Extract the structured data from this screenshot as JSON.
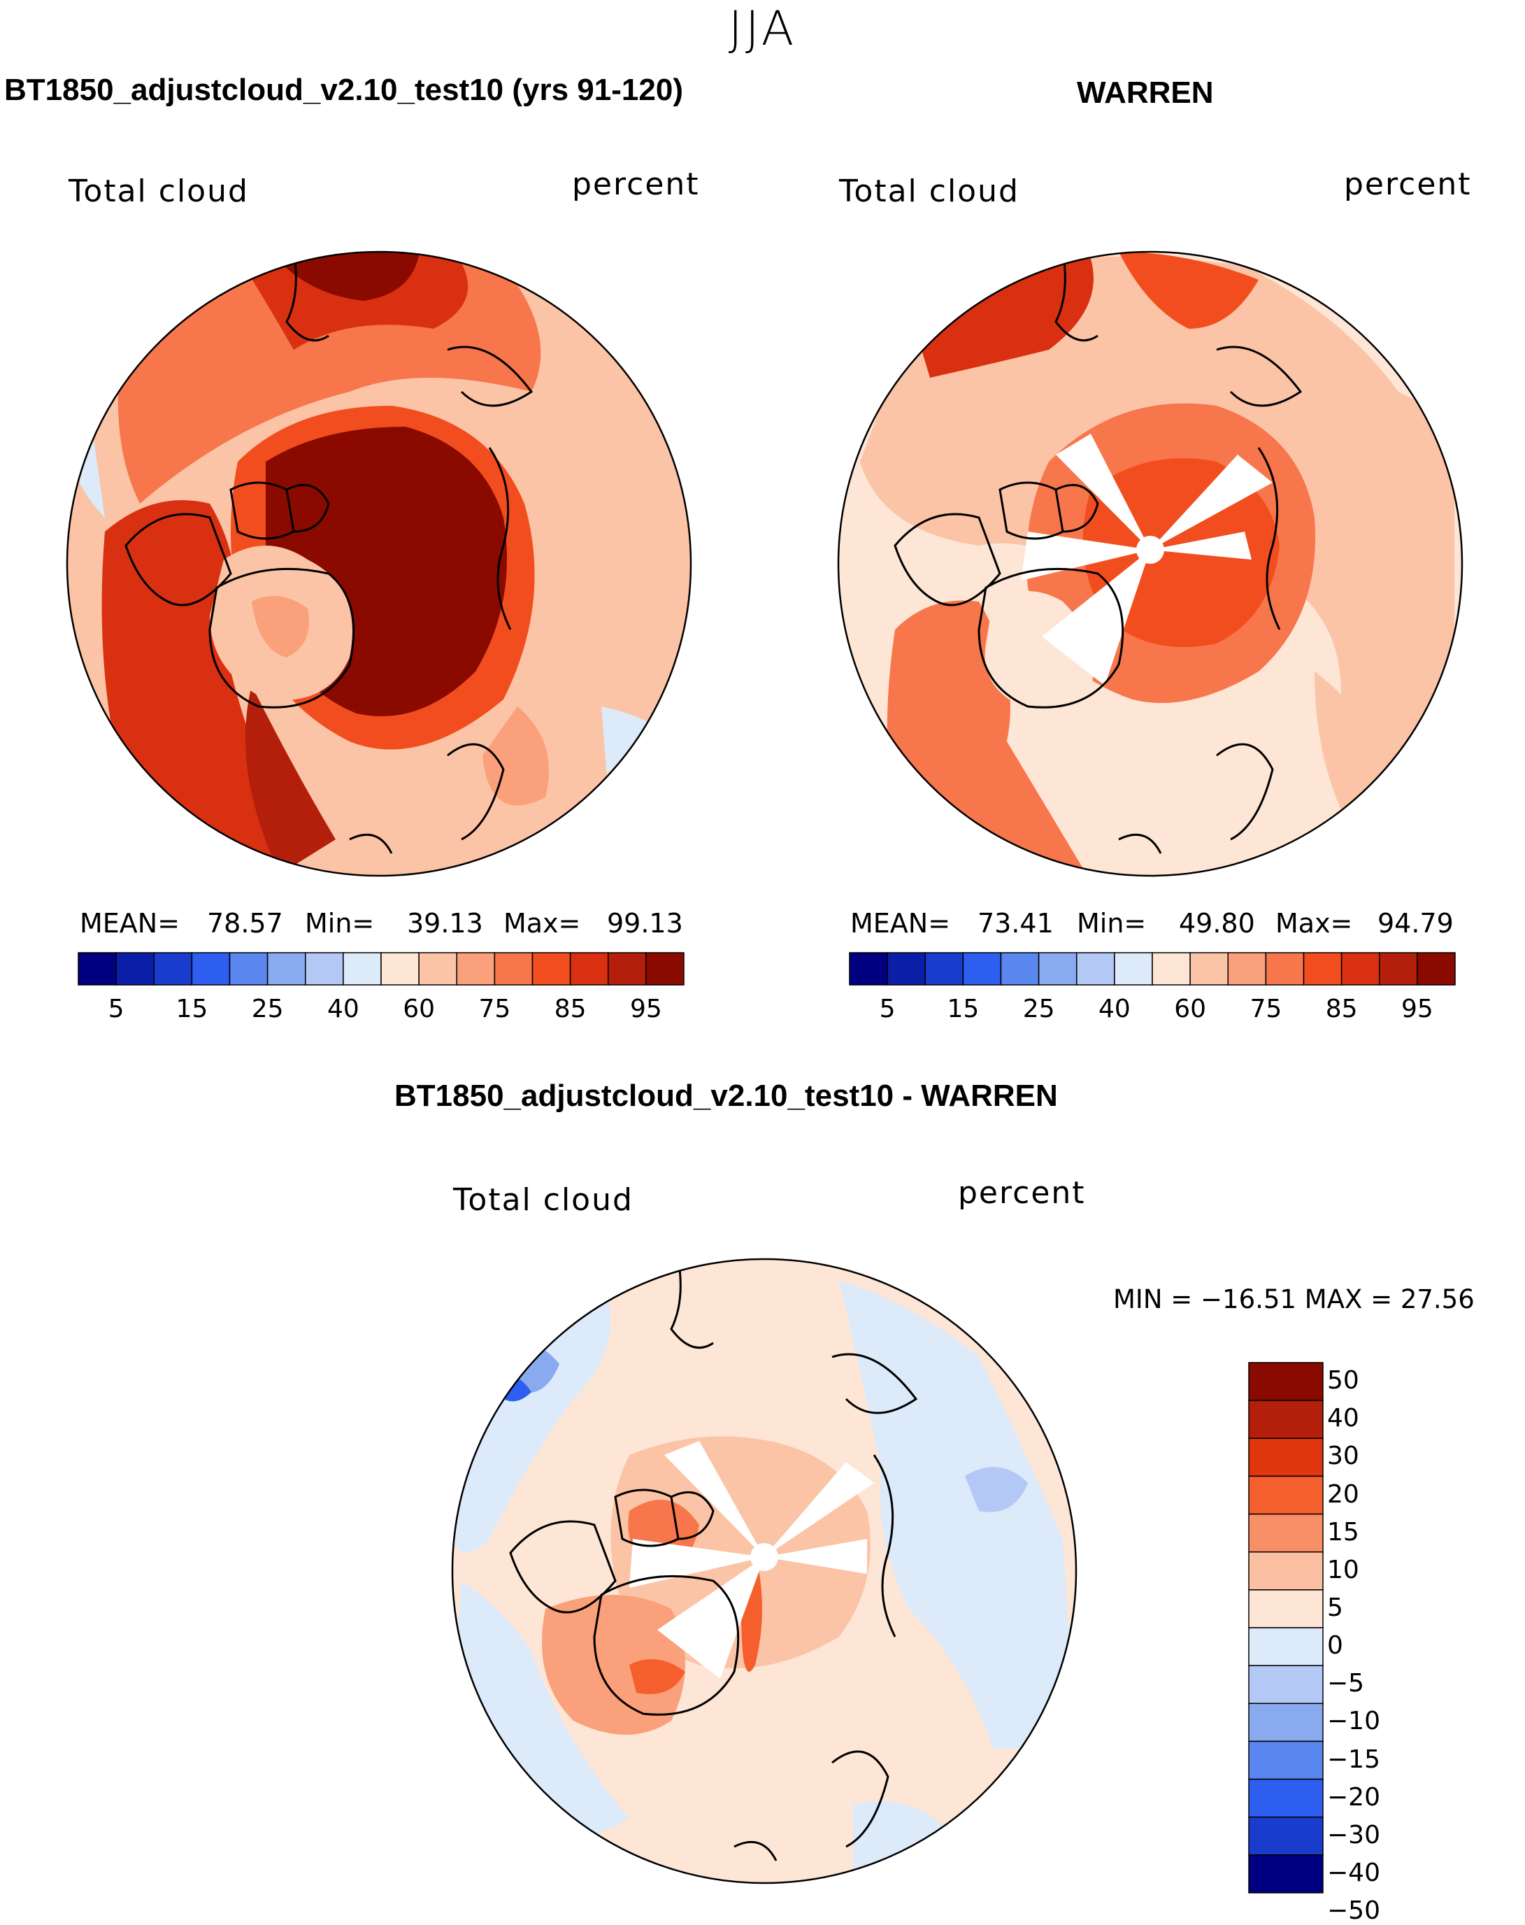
{
  "figure": {
    "season": "JJA",
    "variable": "Total cloud",
    "units": "percent"
  },
  "panels": {
    "model": {
      "title": "BT1850_adjustcloud_v2.10_test10 (yrs 91-120)",
      "mean_label": "MEAN=",
      "mean": "78.57",
      "min_label": "Min=",
      "min": "39.13",
      "max_label": "Max=",
      "max": "99.13"
    },
    "obs": {
      "title": "WARREN",
      "mean_label": "MEAN=",
      "mean": "73.41",
      "min_label": "Min=",
      "min": "49.80",
      "max_label": "Max=",
      "max": "94.79"
    },
    "diff": {
      "title": "BT1850_adjustcloud_v2.10_test10 - WARREN",
      "stats": "MIN = −16.51  MAX =  27.56"
    }
  },
  "colorbars": {
    "abs": {
      "colors": [
        "#000080",
        "#0a1ea8",
        "#1a3ccc",
        "#2e5ef0",
        "#5a86f0",
        "#8aaaf0",
        "#b4c8f6",
        "#dceafa",
        "#fde6d6",
        "#fcc4a6",
        "#faa07a",
        "#f7764c",
        "#f24d1e",
        "#d93012",
        "#b31f0a",
        "#8a0a00"
      ],
      "ticks": [
        "5",
        "15",
        "25",
        "40",
        "60",
        "75",
        "85",
        "95"
      ]
    },
    "diff": {
      "colors": [
        "#8a0a00",
        "#b31f0a",
        "#e0360e",
        "#f55f2e",
        "#f98f66",
        "#fbbfa2",
        "#fde6d6",
        "#dceafa",
        "#b4c8f6",
        "#8aaaf0",
        "#5a86f0",
        "#2e5ef0",
        "#1a3ccc",
        "#000080"
      ],
      "ticks": [
        "50",
        "40",
        "30",
        "20",
        "15",
        "10",
        "5",
        "0",
        "−5",
        "−10",
        "−15",
        "−20",
        "−30",
        "−40",
        "−50"
      ]
    }
  }
}
